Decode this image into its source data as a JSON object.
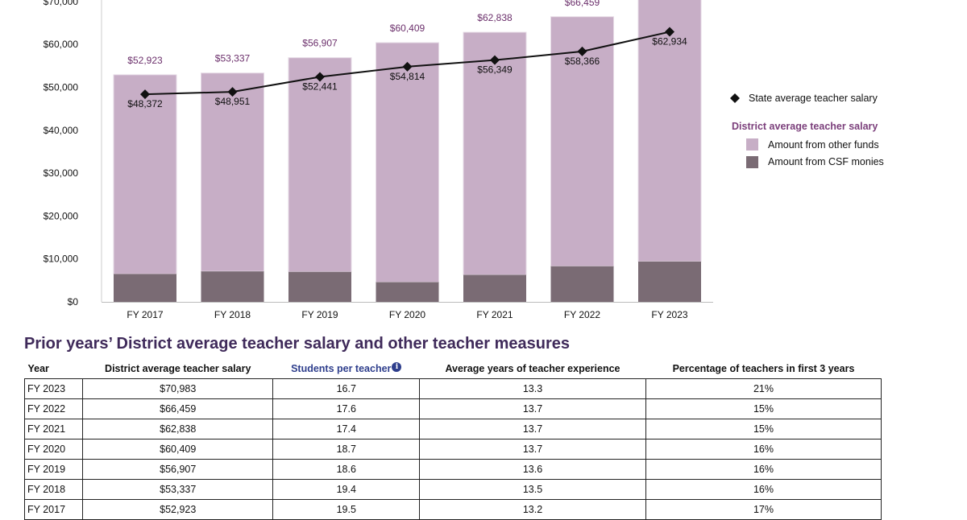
{
  "chart_data": {
    "type": "bar",
    "stacked": true,
    "categories": [
      "FY 2017",
      "FY 2018",
      "FY 2019",
      "FY 2020",
      "FY 2021",
      "FY 2022",
      "FY 2023"
    ],
    "series": [
      {
        "name": "Amount from CSF monies",
        "values": [
          6500,
          7100,
          7000,
          4600,
          6300,
          8300,
          9400
        ],
        "color": "#7a6b74"
      },
      {
        "name": "Amount from other funds",
        "values": [
          46423,
          46237,
          49907,
          55809,
          56538,
          58159,
          61583
        ],
        "color": "#c7aec6"
      }
    ],
    "district_total_labels": [
      "$52,923",
      "$53,337",
      "$56,907",
      "$60,409",
      "$62,838",
      "$66,459",
      ""
    ],
    "state_average": {
      "name": "State average teacher salary",
      "values": [
        48372,
        48951,
        52441,
        54814,
        56349,
        58366,
        62934
      ],
      "labels": [
        "$48,372",
        "$48,951",
        "$52,441",
        "$54,814",
        "$56,349",
        "$58,366",
        "$62,934"
      ]
    },
    "y_ticks": [
      {
        "value": 0,
        "label": "$0"
      },
      {
        "value": 10000,
        "label": "$10,000"
      },
      {
        "value": 20000,
        "label": "$20,000"
      },
      {
        "value": 30000,
        "label": "$30,000"
      },
      {
        "value": 40000,
        "label": "$40,000"
      },
      {
        "value": 50000,
        "label": "$50,000"
      },
      {
        "value": 60000,
        "label": "$60,000"
      },
      {
        "value": 70000,
        "label": "$70,000"
      }
    ],
    "ylim": [
      0,
      72000
    ],
    "legend": {
      "placement": "right",
      "state_label": "State average teacher salary",
      "district_heading": "District average teacher salary",
      "other_funds_label": "Amount from other funds",
      "csf_label": "Amount from CSF monies"
    },
    "colors": {
      "other": "#c7aec6",
      "csf": "#7a6b74",
      "line": "#111111",
      "district_label": "#6b2f6b"
    }
  },
  "table": {
    "title": "Prior years’ District average teacher salary and other teacher measures",
    "headers": {
      "year": "Year",
      "salary": "District average teacher salary",
      "students_per_teacher": "Students per teacher",
      "experience": "Average years of teacher experience",
      "first_3_years": "Percentage of teachers in first 3 years"
    },
    "info_icon_glyph": "i",
    "rows": [
      {
        "year": "FY 2023",
        "salary": "$70,983",
        "spt": "16.7",
        "exp": "13.3",
        "pct": "21%"
      },
      {
        "year": "FY 2022",
        "salary": "$66,459",
        "spt": "17.6",
        "exp": "13.7",
        "pct": "15%"
      },
      {
        "year": "FY 2021",
        "salary": "$62,838",
        "spt": "17.4",
        "exp": "13.7",
        "pct": "15%"
      },
      {
        "year": "FY 2020",
        "salary": "$60,409",
        "spt": "18.7",
        "exp": "13.7",
        "pct": "16%"
      },
      {
        "year": "FY 2019",
        "salary": "$56,907",
        "spt": "18.6",
        "exp": "13.6",
        "pct": "16%"
      },
      {
        "year": "FY 2018",
        "salary": "$53,337",
        "spt": "19.4",
        "exp": "13.5",
        "pct": "16%"
      },
      {
        "year": "FY 2017",
        "salary": "$52,923",
        "spt": "19.5",
        "exp": "13.2",
        "pct": "17%"
      }
    ]
  }
}
